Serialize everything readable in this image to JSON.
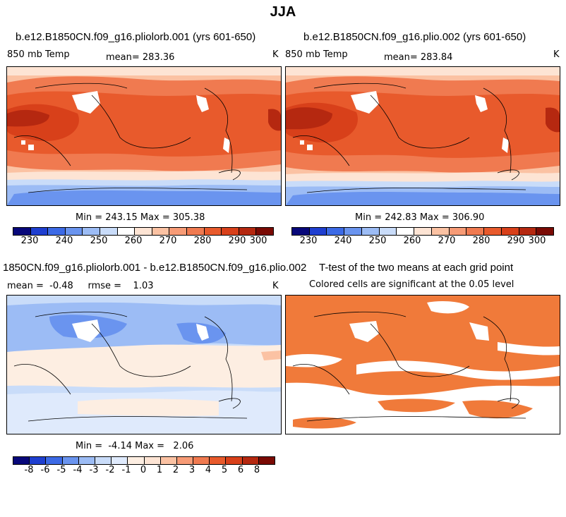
{
  "figure_title": "JJA",
  "panels": {
    "top_left": {
      "title": "b.e12.B1850CN.f09_g16.pliolorb.001 (yrs 601-650)",
      "left_label": "850 mb Temp",
      "center_label": "mean= 283.36",
      "right_label": "K",
      "minmax": "Min = 243.15 Max = 305.38"
    },
    "top_right": {
      "title": "b.e12.B1850CN.f09_g16.plio.002 (yrs 601-650)",
      "left_label": "850 mb Temp",
      "center_label": "mean= 283.84",
      "right_label": "K",
      "minmax": "Min = 242.83 Max = 306.90"
    },
    "bottom_left": {
      "title": "1850CN.f09_g16.pliolorb.001 - b.e12.B1850CN.f09_g16.plio.002",
      "left_label": "mean =  -0.48     rmse =    1.03",
      "right_label": "K",
      "minmax": "Min =  -4.14 Max =   2.06"
    },
    "bottom_right": {
      "title": "T-test of the two means at each grid point",
      "subtitle": "Colored cells are significant at the 0.05 level"
    }
  },
  "chart_data": [
    {
      "type": "heatmap",
      "title": "b.e12.B1850CN.f09_g16.pliolorb.001 (yrs 601-650)",
      "variable": "850 mb Temp",
      "units": "K",
      "mean": 283.36,
      "min": 243.15,
      "max": 305.38,
      "colorbar_ticks": [
        230,
        240,
        250,
        260,
        270,
        280,
        290,
        300
      ],
      "colorbar_colors": [
        "#08087a",
        "#1f3fd0",
        "#3c6ae6",
        "#6a94ef",
        "#9cbcf5",
        "#c9dcf9",
        "#ffffff",
        "#fde4d4",
        "#fbc2a3",
        "#f79b76",
        "#f07a50",
        "#e85a2c",
        "#d8401a",
        "#b52810",
        "#7a0a04"
      ]
    },
    {
      "type": "heatmap",
      "title": "b.e12.B1850CN.f09_g16.plio.002 (yrs 601-650)",
      "variable": "850 mb Temp",
      "units": "K",
      "mean": 283.84,
      "min": 242.83,
      "max": 306.9,
      "colorbar_ticks": [
        230,
        240,
        250,
        260,
        270,
        280,
        290,
        300
      ],
      "colorbar_colors": [
        "#08087a",
        "#1f3fd0",
        "#3c6ae6",
        "#6a94ef",
        "#9cbcf5",
        "#c9dcf9",
        "#ffffff",
        "#fde4d4",
        "#fbc2a3",
        "#f79b76",
        "#f07a50",
        "#e85a2c",
        "#d8401a",
        "#b52810",
        "#7a0a04"
      ]
    },
    {
      "type": "heatmap",
      "title": "1850CN.f09_g16.pliolorb.001 - b.e12.B1850CN.f09_g16.plio.002",
      "units": "K",
      "mean": -0.48,
      "rmse": 1.03,
      "min": -4.14,
      "max": 2.06,
      "colorbar_ticks": [
        -8,
        -6,
        -5,
        -4,
        -3,
        -2,
        -1,
        0,
        1,
        2,
        3,
        4,
        5,
        6,
        8
      ],
      "colorbar_colors": [
        "#08087a",
        "#1f3fd0",
        "#3c6ae6",
        "#6a94ef",
        "#9cbcf5",
        "#c9dcf9",
        "#dfeafc",
        "#fdeee2",
        "#fde4d4",
        "#fbc2a3",
        "#f79b76",
        "#f07a50",
        "#e85a2c",
        "#d8401a",
        "#b52810",
        "#7a0a04"
      ]
    },
    {
      "type": "heatmap",
      "title": "T-test of the two means at each grid point",
      "subtitle": "Colored cells are significant at the 0.05 level",
      "significant_color": "#f07a3a"
    }
  ]
}
